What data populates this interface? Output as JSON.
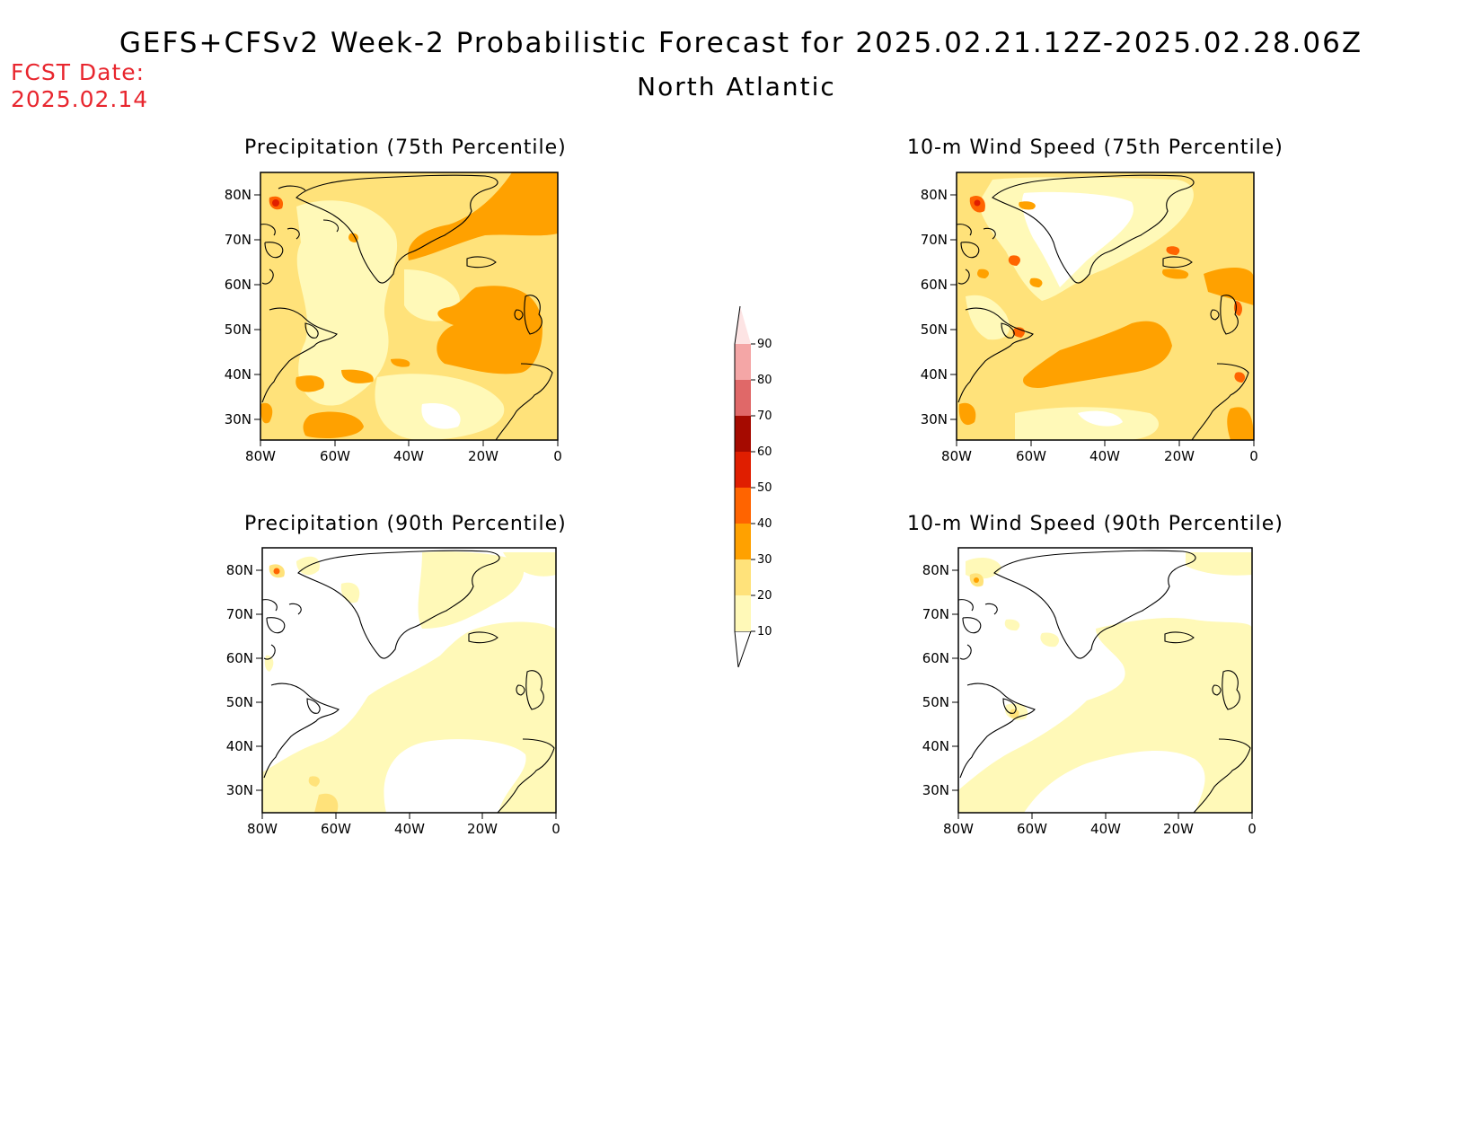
{
  "header": {
    "title": "GEFS+CFSv2 Week-2 Probabilistic Forecast for 2025.02.21.12Z-2025.02.28.06Z",
    "region": "North Atlantic",
    "fcst_label": "FCST Date:",
    "fcst_date": "2025.02.14"
  },
  "panels": [
    {
      "id": "precip-75",
      "title": "Precipitation (75th Percentile)"
    },
    {
      "id": "wind-75",
      "title": "10-m Wind Speed (75th Percentile)"
    },
    {
      "id": "precip-90",
      "title": "Precipitation (90th Percentile)"
    },
    {
      "id": "wind-90",
      "title": "10-m Wind Speed (90th Percentile)"
    }
  ],
  "axes": {
    "lat_labels": [
      "80N",
      "70N",
      "60N",
      "50N",
      "40N",
      "30N"
    ],
    "lon_labels": [
      "80W",
      "60W",
      "40W",
      "20W",
      "0"
    ]
  },
  "colorbar": {
    "levels": [
      "10",
      "20",
      "30",
      "40",
      "50",
      "60",
      "70",
      "80",
      "90"
    ],
    "colors": [
      "#fff9b8",
      "#ffe27a",
      "#ffa100",
      "#ff6400",
      "#e01e00",
      "#a50a00",
      "#e06868",
      "#f4a6a6",
      "#fde4e4"
    ]
  }
}
